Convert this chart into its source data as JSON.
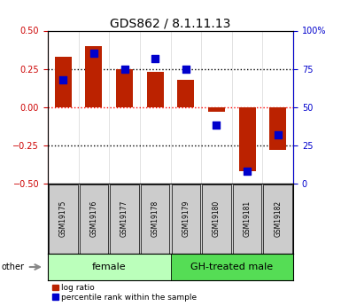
{
  "title": "GDS862 / 8.1.11.13",
  "samples": [
    "GSM19175",
    "GSM19176",
    "GSM19177",
    "GSM19178",
    "GSM19179",
    "GSM19180",
    "GSM19181",
    "GSM19182"
  ],
  "log_ratio": [
    0.33,
    0.4,
    0.25,
    0.23,
    0.18,
    -0.03,
    -0.42,
    -0.28
  ],
  "percentile_rank": [
    0.68,
    0.85,
    0.75,
    0.82,
    0.75,
    0.38,
    0.08,
    0.32
  ],
  "groups": [
    {
      "label": "female",
      "indices": [
        0,
        1,
        2,
        3
      ],
      "color": "#bbffbb"
    },
    {
      "label": "GH-treated male",
      "indices": [
        4,
        5,
        6,
        7
      ],
      "color": "#55dd55"
    }
  ],
  "bar_color": "#bb2200",
  "dot_color": "#0000cc",
  "ylim": [
    -0.5,
    0.5
  ],
  "yticks_left": [
    -0.5,
    -0.25,
    0,
    0.25,
    0.5
  ],
  "yticks_right": [
    0,
    25,
    50,
    75,
    100
  ],
  "hlines_dotted": [
    -0.25,
    0.25
  ],
  "hline_red": 0,
  "legend_log_ratio": "log ratio",
  "legend_percentile": "percentile rank within the sample",
  "other_label": "other",
  "bg_color": "#ffffff",
  "plot_bg_color": "#ffffff",
  "tick_label_color_left": "#cc0000",
  "tick_label_color_right": "#0000cc",
  "bar_width": 0.55,
  "dot_size": 40,
  "title_fontsize": 10,
  "axis_fontsize": 7,
  "sample_fontsize": 5.5,
  "group_label_fontsize": 8
}
